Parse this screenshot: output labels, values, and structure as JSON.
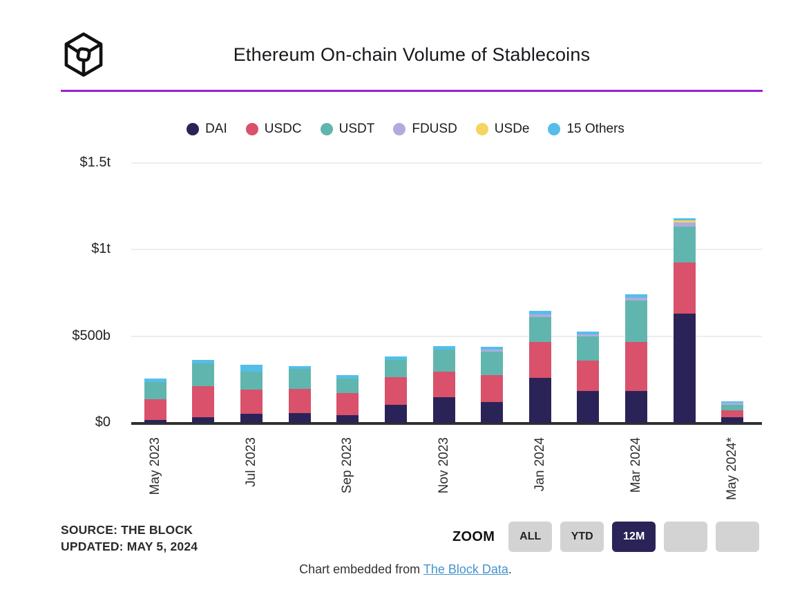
{
  "header": {
    "title": "Ethereum On-chain Volume of Stablecoins",
    "logo": "the-block-logo"
  },
  "chart_data": {
    "type": "bar",
    "stacked": true,
    "title": "Ethereum On-chain Volume of Stablecoins",
    "unit": "USD billions",
    "categories": [
      "May 2023",
      "Jun 2023",
      "Jul 2023",
      "Aug 2023",
      "Sep 2023",
      "Oct 2023",
      "Nov 2023",
      "Dec 2023",
      "Jan 2024",
      "Feb 2024",
      "Mar 2024",
      "Apr 2024",
      "May 2024*"
    ],
    "x_tick_labels": [
      "May 2023",
      "Jul 2023",
      "Sep 2023",
      "Nov 2023",
      "Jan 2024",
      "Mar 2024",
      "May 2024*"
    ],
    "series": [
      {
        "name": "DAI",
        "color": "#2a2357",
        "values": [
          17,
          31,
          50,
          54,
          42,
          105,
          148,
          121,
          261,
          184,
          184,
          631,
          30
        ]
      },
      {
        "name": "USDC",
        "color": "#d9516a",
        "values": [
          119,
          179,
          142,
          142,
          130,
          159,
          149,
          156,
          204,
          177,
          284,
          293,
          40
        ]
      },
      {
        "name": "USDT",
        "color": "#60b6ae",
        "values": [
          101,
          135,
          103,
          115,
          82,
          101,
          126,
          136,
          147,
          136,
          240,
          208,
          34
        ]
      },
      {
        "name": "FDUSD",
        "color": "#b1abdd",
        "values": [
          0,
          0,
          0,
          0,
          0,
          0,
          0,
          12,
          15,
          14,
          16,
          27,
          10
        ]
      },
      {
        "name": "USDe",
        "color": "#f5d55f",
        "values": [
          0,
          0,
          0,
          0,
          0,
          0,
          0,
          0,
          0,
          0,
          0,
          9,
          0
        ]
      },
      {
        "name": "15 Others",
        "color": "#54bee9",
        "values": [
          18,
          17,
          39,
          16,
          20,
          19,
          18,
          16,
          21,
          17,
          17,
          13,
          8
        ]
      }
    ],
    "y_ticks": [
      {
        "label": "$0",
        "value": 0
      },
      {
        "label": "$500b",
        "value": 500
      },
      {
        "label": "$1t",
        "value": 1000
      },
      {
        "label": "$1.5t",
        "value": 1500
      }
    ],
    "ylim": [
      0,
      1500
    ],
    "grid": true,
    "legend_position": "top"
  },
  "footer": {
    "source_line1": "SOURCE: THE BLOCK",
    "source_line2": "UPDATED: MAY 5, 2024",
    "zoom_label": "ZOOM",
    "zoom_buttons": [
      {
        "label": "ALL",
        "active": false
      },
      {
        "label": "YTD",
        "active": false
      },
      {
        "label": "12M",
        "active": true
      },
      {
        "label": "",
        "active": false
      },
      {
        "label": "",
        "active": false
      }
    ],
    "embed_prefix": "Chart embedded from ",
    "embed_link": "The Block Data",
    "embed_suffix": "."
  },
  "colors": {
    "divider": "#9a1fd8",
    "axis": "#2f2f2f",
    "gridline": "#ededed",
    "active_button": "#2a2357",
    "button_gray": "#d3d3d3",
    "link_blue": "#4493ce"
  }
}
